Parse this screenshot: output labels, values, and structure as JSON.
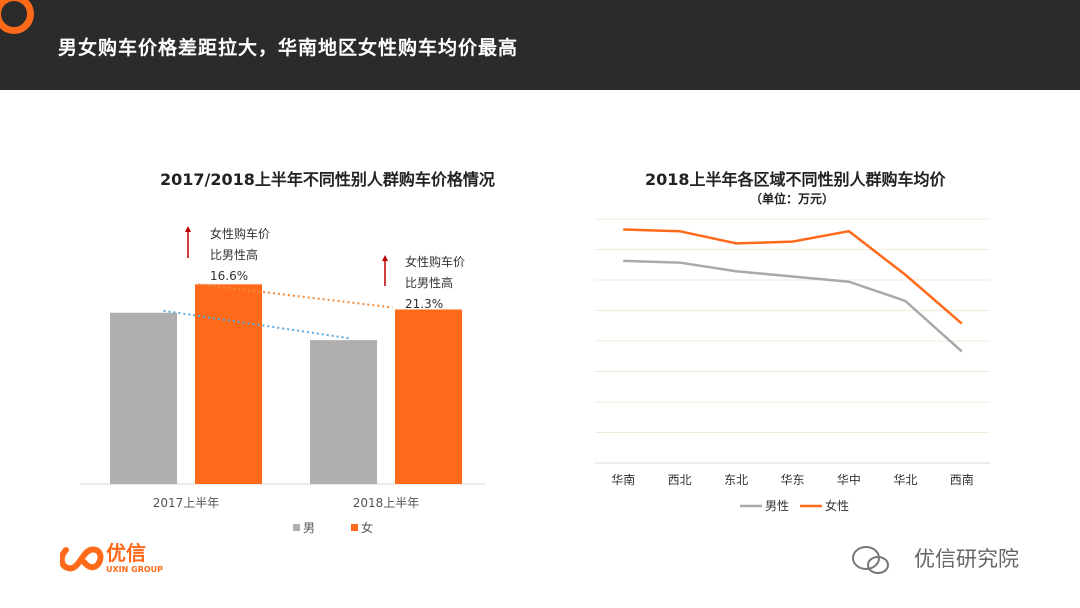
{
  "header": {
    "title": "男女购车价格差距拉大，华南地区女性购车均价最高"
  },
  "left_chart": {
    "title": "2017/2018上半年不同性别人群购车价格情况"
  },
  "right_chart": {
    "title": "2018上半年各区域不同性别人群购车均价",
    "subtitle": "（单位：万元）"
  },
  "annotations": [
    {
      "line1": "女性购车价",
      "line2": "比男性高",
      "pct": "16.6%"
    },
    {
      "line1": "女性购车价",
      "line2": "比男性高",
      "pct": "21.3%"
    }
  ],
  "colors": {
    "male_bar": "#b1aeae",
    "female": "#ff6a1a",
    "male_line": "#a9a9a9",
    "arrow": "#c00000",
    "trend_female": "#f08a3c",
    "trend_male": "#5aa9e0"
  },
  "brand": {
    "logo_cn": "优信",
    "logo_en": "UXIN GROUP",
    "watermark": "优信研究院"
  },
  "chart_data": [
    {
      "type": "bar",
      "categories": [
        "2017上半年",
        "2018上半年"
      ],
      "series": [
        {
          "name": "男",
          "values": [
            10.0,
            8.4
          ]
        },
        {
          "name": "女",
          "values": [
            11.66,
            10.19
          ]
        }
      ],
      "ylim": [
        0,
        16.0
      ],
      "grid": false,
      "legend": "bottom"
    },
    {
      "type": "line",
      "categories": [
        "华南",
        "西北",
        "东北",
        "华东",
        "华中",
        "华北",
        "西南"
      ],
      "series": [
        {
          "name": "男性",
          "values": [
            11.6,
            11.5,
            11.0,
            10.7,
            10.4,
            9.3,
            6.4
          ]
        },
        {
          "name": "女性",
          "values": [
            13.4,
            13.3,
            12.6,
            12.7,
            13.3,
            10.8,
            8.0
          ]
        }
      ],
      "ylim": [
        0,
        14
      ],
      "grid": true,
      "legend": "bottom"
    }
  ]
}
